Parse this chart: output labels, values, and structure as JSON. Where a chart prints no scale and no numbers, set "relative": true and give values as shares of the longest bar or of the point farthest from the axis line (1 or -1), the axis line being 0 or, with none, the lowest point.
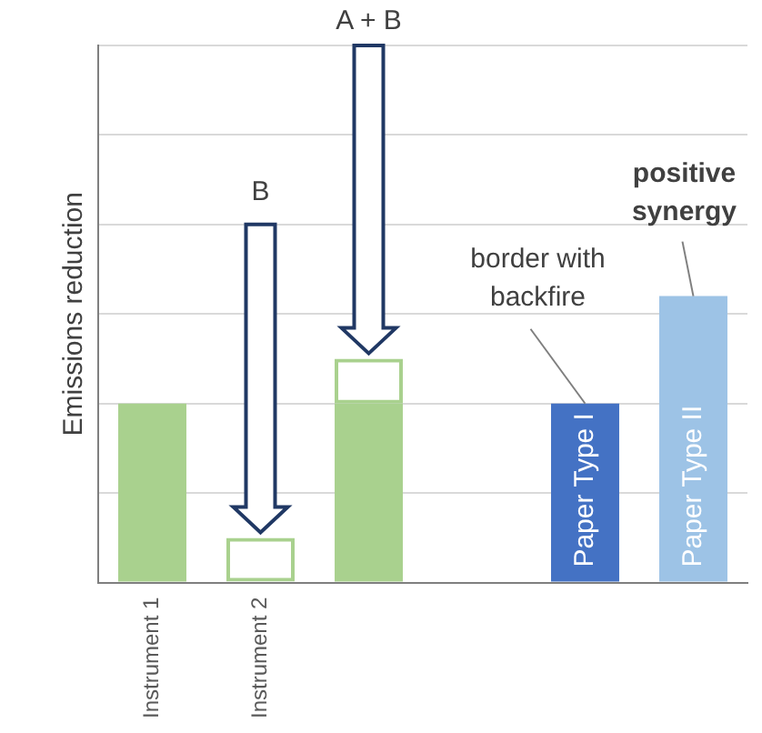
{
  "chart_data": {
    "type": "bar",
    "ylabel": "Emissions reduction",
    "categories": [
      "Instrument 1",
      "Instrument 2",
      null,
      null,
      null,
      null
    ],
    "series": [
      {
        "color": "#a9d18e",
        "values": [
          0.625,
          null,
          0.625,
          null,
          null,
          null
        ]
      },
      {
        "color": "#a9d18e",
        "values": [
          null,
          0.156,
          0.156,
          null,
          null,
          null
        ]
      },
      {
        "name": "Paper Type I",
        "color": "#4472c4",
        "values": [
          null,
          null,
          null,
          null,
          0.625,
          null
        ]
      },
      {
        "name": "Paper Type II",
        "color": "#9dc3e6",
        "values": [
          null,
          null,
          null,
          null,
          null,
          1
        ]
      }
    ],
    "stacked": true,
    "relative": true,
    "grid": "y",
    "legend": false,
    "annotations": [
      "B",
      "A + B",
      "border with backfire",
      "positive synergy"
    ]
  }
}
